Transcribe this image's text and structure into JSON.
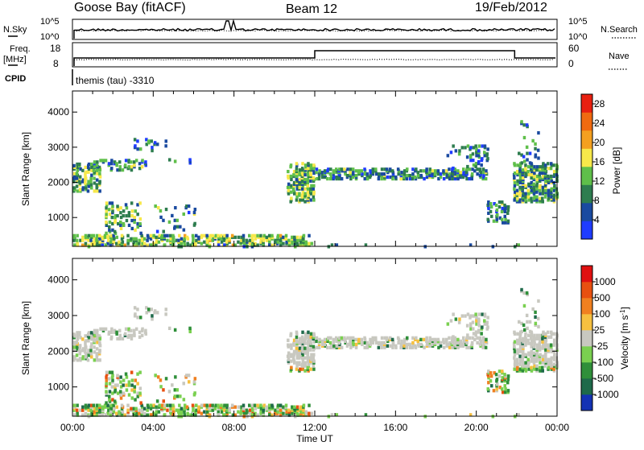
{
  "header": {
    "station": "Goose Bay (fitACF)",
    "beam": "Beam 12",
    "date": "19/Feb/2012"
  },
  "panels": {
    "nsky_label": "N.Sky",
    "nsky_ticks": [
      "10^5",
      "10^0"
    ],
    "nsearch_label": "N.Search",
    "nsearch_ticks": [
      "10^5",
      "10^0"
    ],
    "freq_label": "Freq.",
    "freq_unit": "[MHz]",
    "freq_ticks": [
      "18",
      "8"
    ],
    "nave_label": "Nave",
    "nave_ticks": [
      "60",
      "0"
    ],
    "cpid_label": "CPID",
    "cpid_text": "themis (tau) -3310"
  },
  "colors": {
    "power": [
      "#1f3cff",
      "#1a4aa0",
      "#2e7d4f",
      "#5fbf4a",
      "#f7e84a",
      "#f4a020",
      "#f06a10",
      "#e82010"
    ],
    "velocity": [
      "#1432b4",
      "#1e6a4a",
      "#2f8f3a",
      "#7ad050",
      "#c8c8c0",
      "#f6c040",
      "#f08020",
      "#e85010",
      "#e01010"
    ],
    "ground_scatter": "#c8c8c0"
  },
  "chart_data": [
    {
      "type": "heatmap",
      "name": "power",
      "ylabel": "Slant Range [km]",
      "xlabel": "",
      "x_ticks": [
        "00:00",
        "04:00",
        "08:00",
        "12:00",
        "16:00",
        "20:00",
        "00:00"
      ],
      "y_ticks": [
        "1000",
        "2000",
        "3000",
        "4000"
      ],
      "xlim_hours": [
        0,
        24
      ],
      "ylim_km": [
        180,
        4600
      ],
      "colorbar": {
        "label": "Power [dB]",
        "ticks": [
          "28",
          "24",
          "20",
          "16",
          "12",
          "8",
          "4"
        ],
        "range": [
          0,
          30
        ]
      }
    },
    {
      "type": "heatmap",
      "name": "velocity",
      "ylabel": "Slant Range [km]",
      "xlabel": "Time UT",
      "x_ticks": [
        "00:00",
        "04:00",
        "08:00",
        "12:00",
        "16:00",
        "20:00",
        "00:00"
      ],
      "y_ticks": [
        "1000",
        "2000",
        "3000",
        "4000"
      ],
      "xlim_hours": [
        0,
        24
      ],
      "ylim_km": [
        180,
        4600
      ],
      "colorbar": {
        "label": "Velocity [m s-1]",
        "ticks": [
          "1000",
          "500",
          "100",
          "25",
          "-25",
          "-100",
          "-500",
          "-1000"
        ]
      }
    }
  ]
}
